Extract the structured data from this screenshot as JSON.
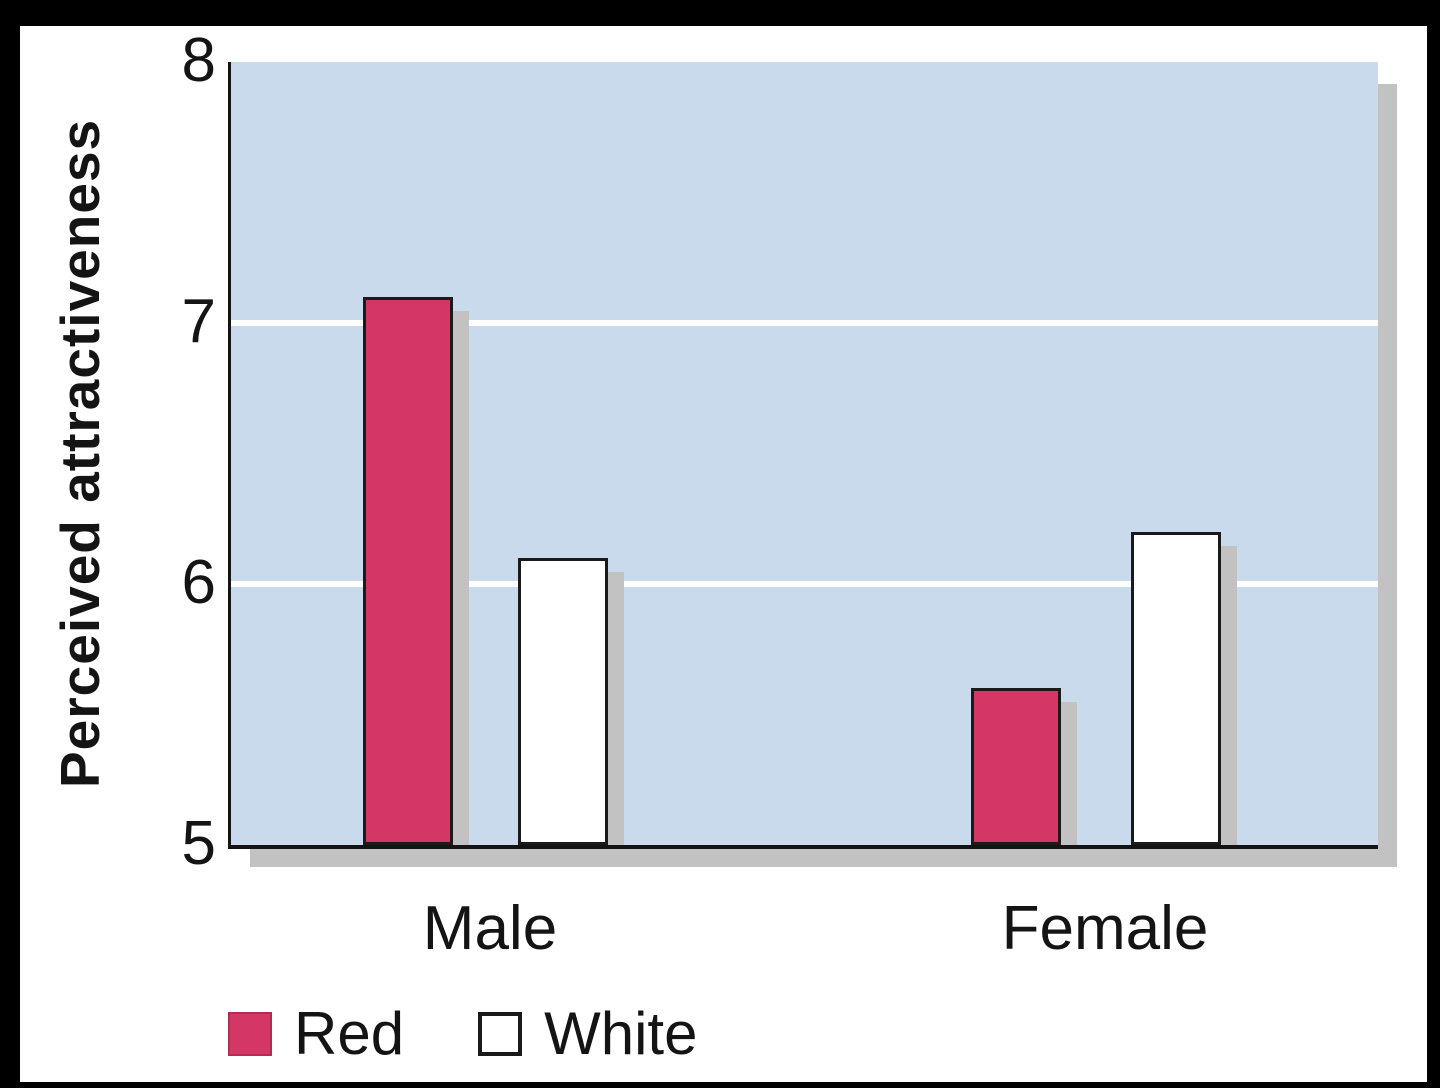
{
  "chart_data": {
    "type": "bar",
    "title": "",
    "xlabel": "",
    "ylabel": "Perceived attractiveness",
    "categories": [
      "Male",
      "Female"
    ],
    "series": [
      {
        "name": "Red",
        "color": "#d43765",
        "values": [
          7.1,
          5.6
        ]
      },
      {
        "name": "White",
        "color": "#ffffff",
        "values": [
          6.1,
          6.2
        ]
      }
    ],
    "ylim": [
      5,
      8
    ],
    "yticks": [
      5,
      6,
      7,
      8
    ],
    "gridlines": [
      6,
      7
    ],
    "grid": "on",
    "legend_position": "bottom-left",
    "plot_background": "#c8daec",
    "shadow_color": "#c2c2c2",
    "axis_color": "#141414"
  }
}
